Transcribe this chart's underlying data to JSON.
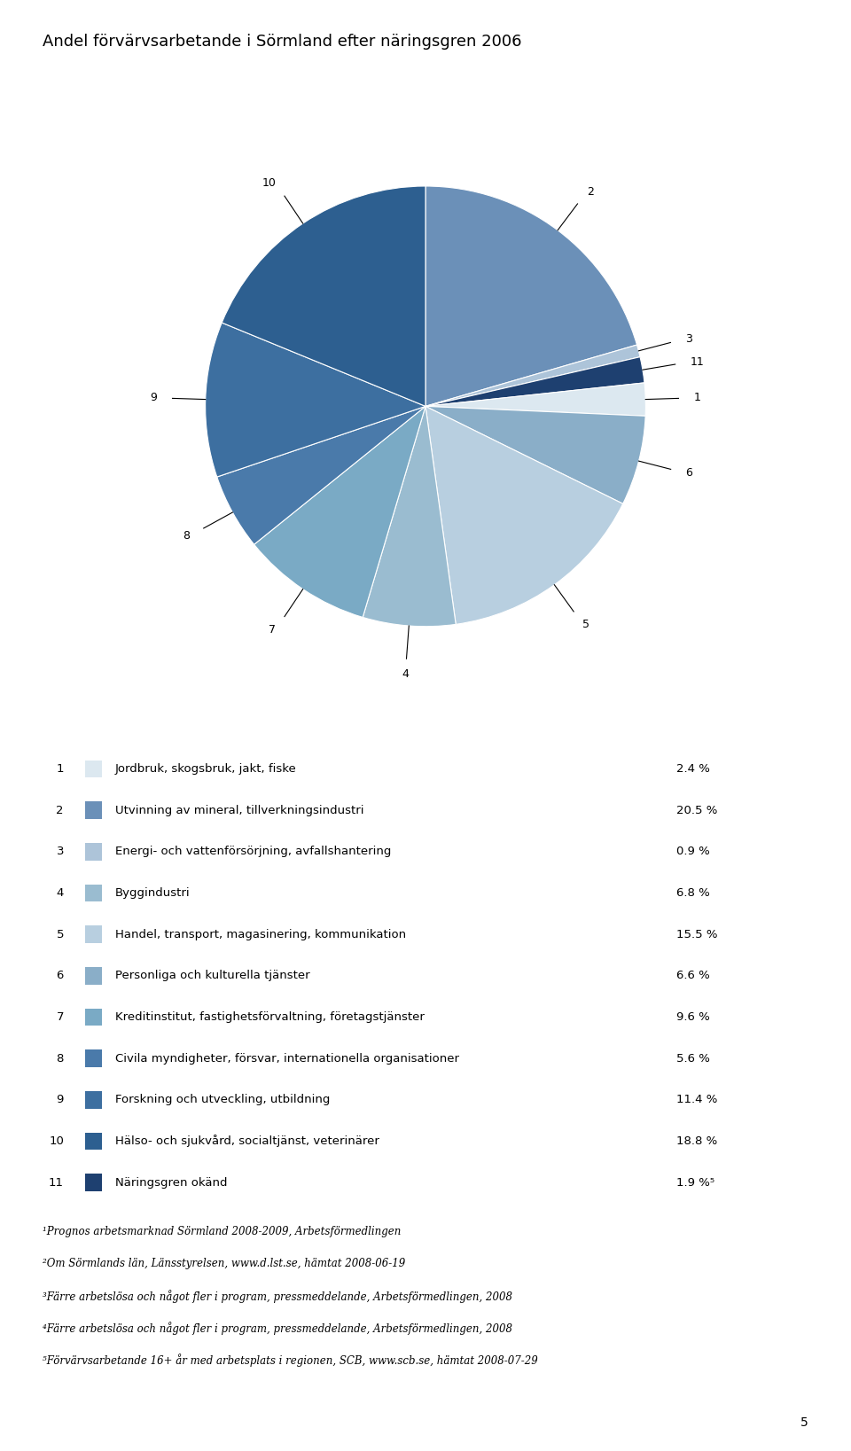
{
  "title": "Andel förvärvsarbetande i Sörmland efter näringsgren 2006",
  "slices_ordered": [
    {
      "id": 2,
      "value": 20.5,
      "color": "#6b90b8"
    },
    {
      "id": 3,
      "value": 0.9,
      "color": "#adc4d9"
    },
    {
      "id": 11,
      "value": 1.9,
      "color": "#1e4070"
    },
    {
      "id": 1,
      "value": 2.4,
      "color": "#dce8f0"
    },
    {
      "id": 6,
      "value": 6.6,
      "color": "#8aaec8"
    },
    {
      "id": 5,
      "value": 15.5,
      "color": "#b8cfe0"
    },
    {
      "id": 4,
      "value": 6.8,
      "color": "#9abcd0"
    },
    {
      "id": 7,
      "value": 9.6,
      "color": "#7aaac5"
    },
    {
      "id": 8,
      "value": 5.6,
      "color": "#4a7aaa"
    },
    {
      "id": 9,
      "value": 11.4,
      "color": "#3d6fa0"
    },
    {
      "id": 10,
      "value": 18.8,
      "color": "#2d5f90"
    }
  ],
  "legend_rows": [
    {
      "id": 1,
      "label": "Jordbruk, skogsbruk, jakt, fiske",
      "value": "2.4 %",
      "color": "#dce8f0"
    },
    {
      "id": 2,
      "label": "Utvinning av mineral, tillverkningsindustri",
      "value": "20.5 %",
      "color": "#6b90b8"
    },
    {
      "id": 3,
      "label": "Energi- och vattenförsörjning, avfallshantering",
      "value": "0.9 %",
      "color": "#adc4d9"
    },
    {
      "id": 4,
      "label": "Byggindustri",
      "value": "6.8 %",
      "color": "#9abcd0"
    },
    {
      "id": 5,
      "label": "Handel, transport, magasinering, kommunikation",
      "value": "15.5 %",
      "color": "#b8cfe0"
    },
    {
      "id": 6,
      "label": "Personliga och kulturella tjänster",
      "value": "6.6 %",
      "color": "#8aaec8"
    },
    {
      "id": 7,
      "label": "Kreditinstitut, fastighetsförvaltning, företagstjänster",
      "value": "9.6 %",
      "color": "#7aaac5"
    },
    {
      "id": 8,
      "label": "Civila myndigheter, försvar, internationella organisationer",
      "value": "5.6 %",
      "color": "#4a7aaa"
    },
    {
      "id": 9,
      "label": "Forskning och utveckling, utbildning",
      "value": "11.4 %",
      "color": "#3d6fa0"
    },
    {
      "id": 10,
      "label": "Hälso- och sjukvård, socialtjänst, veterinärer",
      "value": "18.8 %",
      "color": "#2d5f90"
    },
    {
      "id": 11,
      "label": "Näringsgren okänd",
      "value": "1.9 %⁵",
      "color": "#1e4070"
    }
  ],
  "footnotes": [
    "¹Prognos arbetsmarknad Sörmland 2008-2009, Arbetsförmedlingen",
    "²Om Sörmlands län, Länsstyrelsen, www.d.lst.se, hämtat 2008-06-19",
    "³Färre arbetslösa och något fler i program, pressmeddelande, Arbetsförmedlingen, 2008",
    "⁴Färre arbetslösa och något fler i program, pressmeddelande, Arbetsförmedlingen, 2008",
    "⁵Förvärvsarbetande 16+ år med arbetsplats i regionen, SCB, www.scb.se, hämtat 2008-07-29"
  ],
  "page_number": "5",
  "background_color": "#ffffff",
  "title_fontsize": 13,
  "legend_fontsize": 9.5,
  "footnote_fontsize": 8.5
}
